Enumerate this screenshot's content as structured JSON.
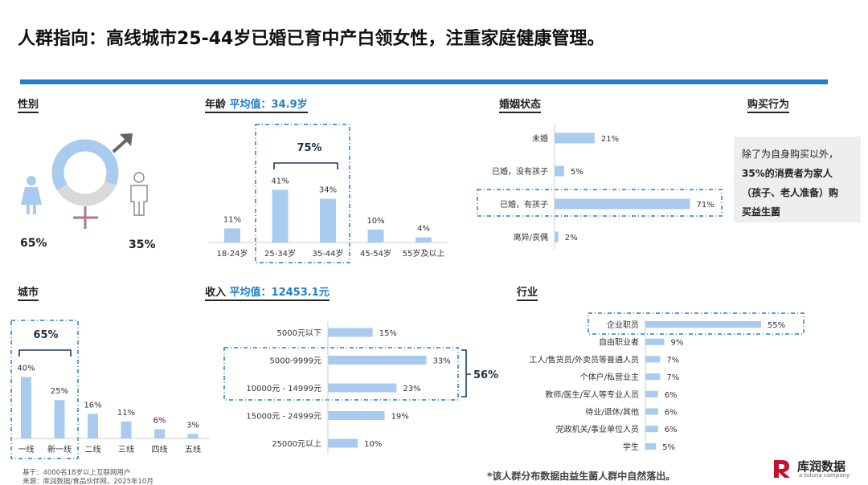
{
  "title": "人群指向：高线城市25-44岁已婚已育中产白领女性，注重家庭健康管理。",
  "gender": {
    "label": "性别",
    "female_pct": "65%",
    "male_pct": "35%",
    "female_value": 65,
    "male_value": 35,
    "ring_colors": {
      "female": "#a9cbef",
      "male": "#d9d9d9"
    }
  },
  "age": {
    "label": "年龄",
    "avg_label": "平均值：34.9岁",
    "highlight_total": "75%"
  },
  "marital": {
    "label": "婚姻状态"
  },
  "purchase": {
    "label": "购买行为",
    "line1": "除了为自身购买以外，",
    "line2": "35%的消费者为家人",
    "line3": "（孩子、老人准备）购",
    "line4": "买益生菌"
  },
  "city": {
    "label": "城市",
    "highlight_total": "65%"
  },
  "income": {
    "label": "收入",
    "avg_label": "平均值：12453.1元",
    "highlight_total": "56%"
  },
  "industry": {
    "label": "行业"
  },
  "footnote": {
    "base": "基于：4000名18岁以上互联网用户",
    "source": "来源：库润数据/食品伙伴网，2025年10月",
    "note": "*该人群分布数据由益生菌人群中自然落出。"
  },
  "brand": {
    "name": "库润数据",
    "sub": "a toluna company",
    "color": "#c8102e"
  },
  "chart_data": [
    {
      "id": "age",
      "type": "bar",
      "title": "年龄",
      "categories": [
        "18-24岁",
        "25-34岁",
        "35-44岁",
        "45-54岁",
        "55岁及以上"
      ],
      "values": [
        11,
        41,
        34,
        10,
        4
      ],
      "labels": [
        "11%",
        "41%",
        "34%",
        "10%",
        "4%"
      ],
      "ylim": [
        0,
        45
      ]
    },
    {
      "id": "marital",
      "type": "bar",
      "orientation": "horizontal",
      "title": "婚姻状态",
      "categories": [
        "未婚",
        "已婚，没有孩子",
        "已婚，有孩子",
        "离异/丧偶"
      ],
      "values": [
        21,
        5,
        71,
        2
      ],
      "labels": [
        "21%",
        "5%",
        "71%",
        "2%"
      ],
      "xlim": [
        0,
        75
      ]
    },
    {
      "id": "city",
      "type": "bar",
      "title": "城市",
      "categories": [
        "一线",
        "新一线",
        "二线",
        "三线",
        "四线",
        "五线"
      ],
      "values": [
        40,
        25,
        16,
        11,
        6,
        3
      ],
      "labels": [
        "40%",
        "25%",
        "16%",
        "11%",
        "6%",
        "3%"
      ],
      "ylim": [
        0,
        45
      ]
    },
    {
      "id": "income",
      "type": "bar",
      "orientation": "horizontal",
      "title": "收入",
      "categories": [
        "5000元以下",
        "5000-9999元",
        "10000元 - 14999元",
        "15000元 - 24999元",
        "25000元以上"
      ],
      "values": [
        15,
        33,
        23,
        19,
        10
      ],
      "labels": [
        "15%",
        "33%",
        "23%",
        "19%",
        "10%"
      ],
      "xlim": [
        0,
        35
      ]
    },
    {
      "id": "industry",
      "type": "bar",
      "orientation": "horizontal",
      "title": "行业",
      "categories": [
        "企业职员",
        "自由职业者",
        "工人/售货员/外卖员等普通人员",
        "个体户/私营业主",
        "教师/医生/军人等专业人员",
        "待业/退休/其他",
        "党政机关/事业单位人员",
        "学生"
      ],
      "values": [
        55,
        9,
        7,
        7,
        6,
        6,
        6,
        5
      ],
      "labels": [
        "55%",
        "9%",
        "7%",
        "7%",
        "6%",
        "6%",
        "6%",
        "5%"
      ],
      "xlim": [
        0,
        60
      ]
    }
  ]
}
